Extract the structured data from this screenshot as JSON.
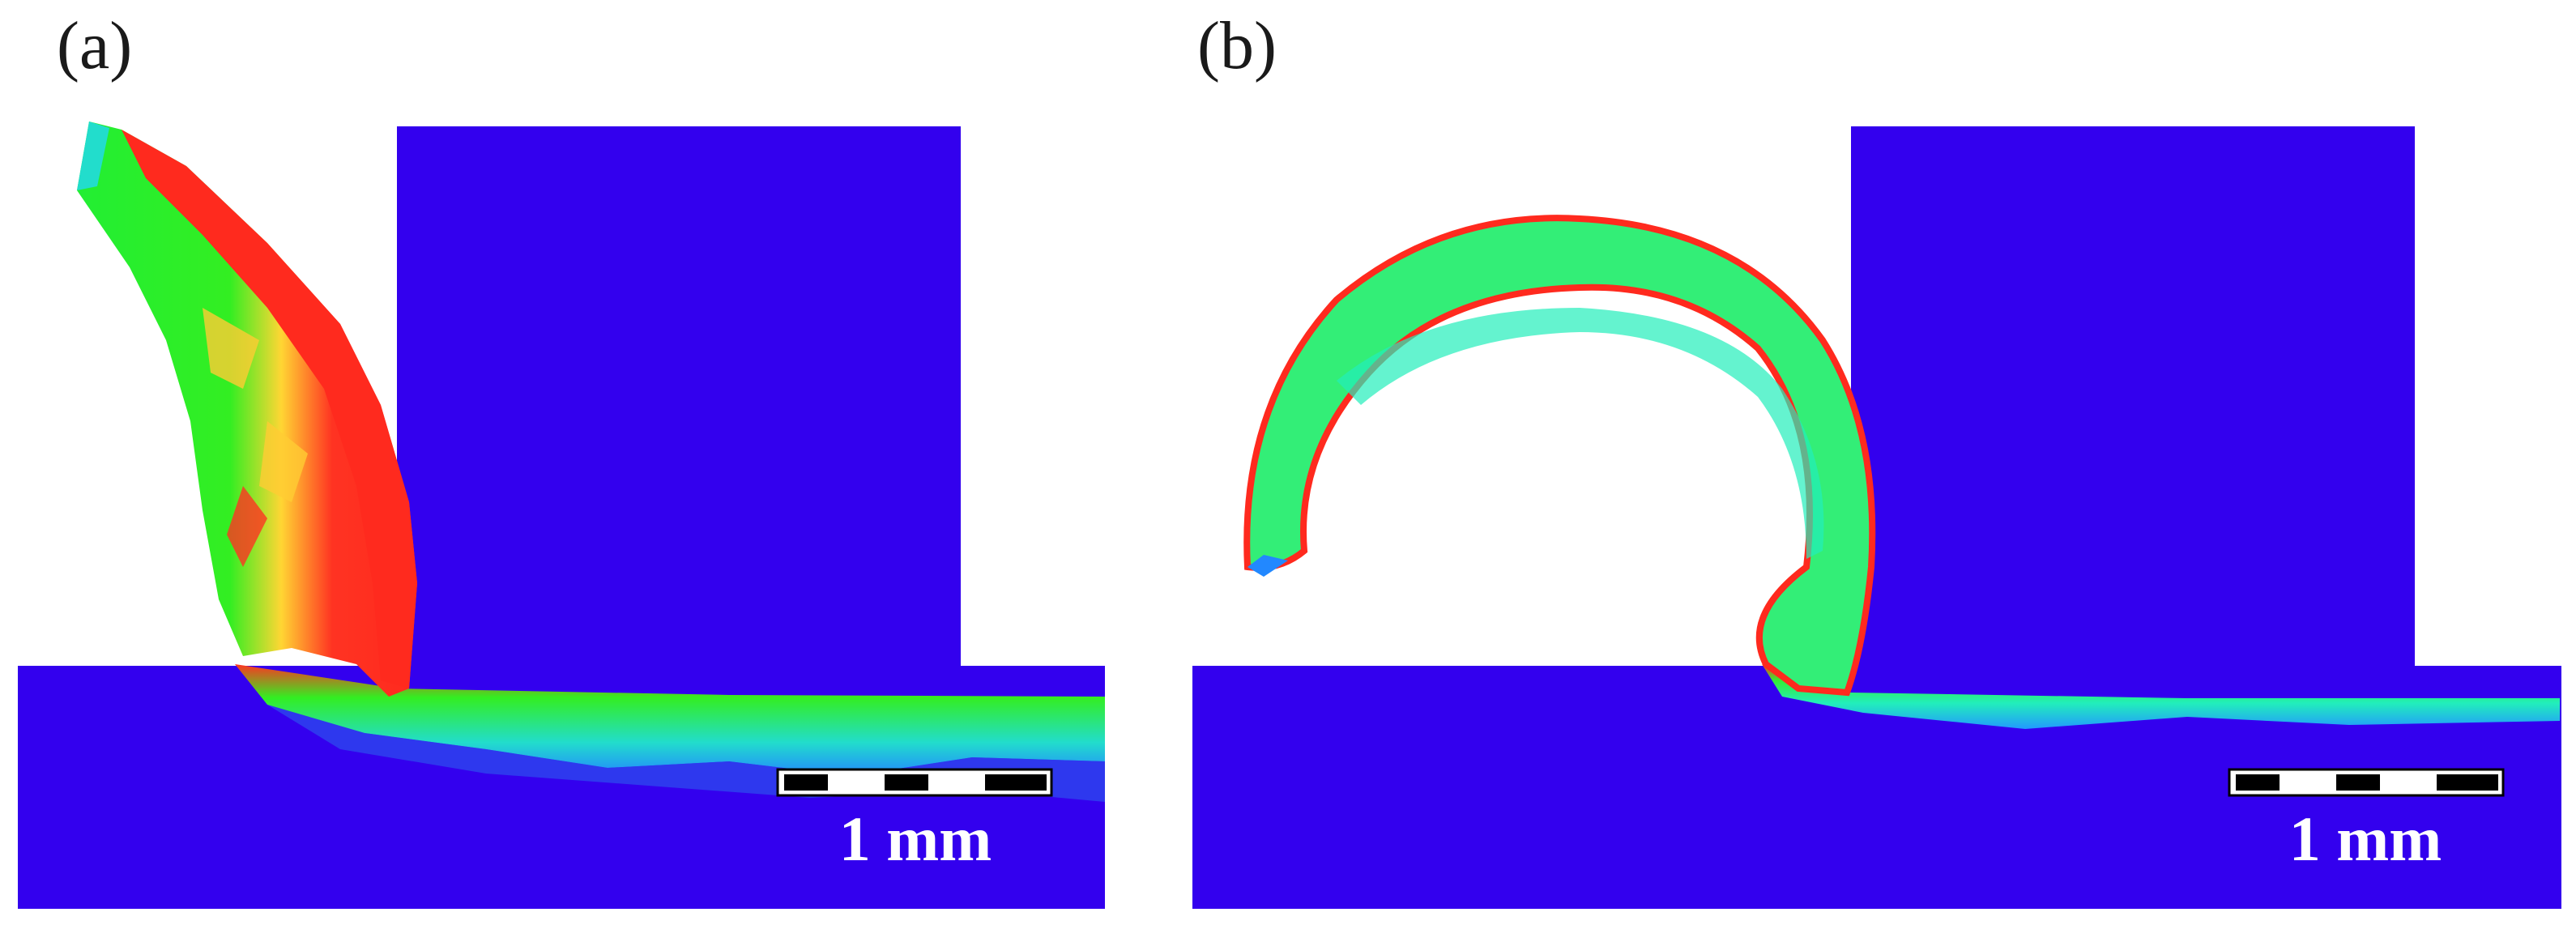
{
  "panels": [
    {
      "label": "(a)",
      "scale_bar_text": "1 mm"
    },
    {
      "label": "(b)",
      "scale_bar_text": "1 mm"
    }
  ],
  "colors": {
    "workpiece": "#3300ee",
    "high": "#ff2a1e",
    "mid": "#ffe033",
    "green": "#22ee22",
    "cyan": "#22eeaa",
    "low": "#2288ff",
    "background": "#ffffff"
  }
}
